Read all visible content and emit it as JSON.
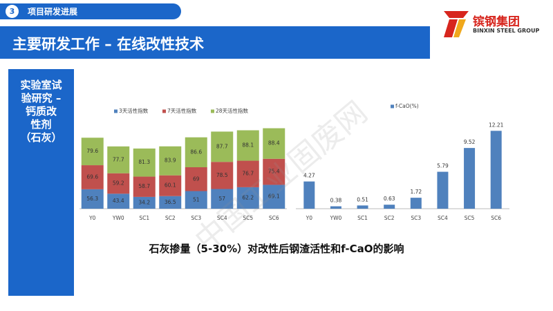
{
  "header": {
    "section_number": "3",
    "section_title": "项目研发进展",
    "title": "主要研发工作 – 在线改性技术"
  },
  "logo": {
    "name": "镔钢集团",
    "subtitle": "BINXIN STEEL GROUP"
  },
  "side_panel": {
    "lines": [
      "实验室试",
      "验研究 –",
      "钙质改",
      "性剂",
      "（石灰）"
    ]
  },
  "caption": "石灰掺量（5-30%）对改性后钢渣活性和f-CaO的影响",
  "watermark": "中国工业固废网",
  "chart_data": [
    {
      "type": "stacked-bar",
      "categories": [
        "Y0",
        "YW0",
        "SC1",
        "SC2",
        "SC3",
        "SC4",
        "SC5",
        "SC6"
      ],
      "series": [
        {
          "name": "3天活性指数",
          "color": "#4f81bd",
          "values": [
            56.3,
            43.4,
            34.2,
            36.5,
            51,
            57,
            62.2,
            69.1
          ]
        },
        {
          "name": "7天活性指数",
          "color": "#c0504d",
          "values": [
            69.6,
            59.2,
            58.7,
            60.1,
            69,
            78.5,
            76.7,
            75.4
          ]
        },
        {
          "name": "28天活性指数",
          "color": "#9bbb59",
          "values": [
            79.6,
            77.7,
            81.3,
            83.9,
            86.6,
            87.7,
            88.1,
            88.4
          ]
        }
      ],
      "ylim": [
        0,
        240
      ]
    },
    {
      "type": "bar",
      "categories": [
        "Y0",
        "YW0",
        "SC1",
        "SC2",
        "SC3",
        "SC4",
        "SC5",
        "SC6"
      ],
      "series": [
        {
          "name": "f-CaO(%)",
          "color": "#4f81bd",
          "values": [
            4.27,
            0.38,
            0.51,
            0.63,
            1.72,
            5.79,
            9.52,
            12.21
          ]
        }
      ],
      "ylim": [
        0,
        13
      ]
    }
  ]
}
